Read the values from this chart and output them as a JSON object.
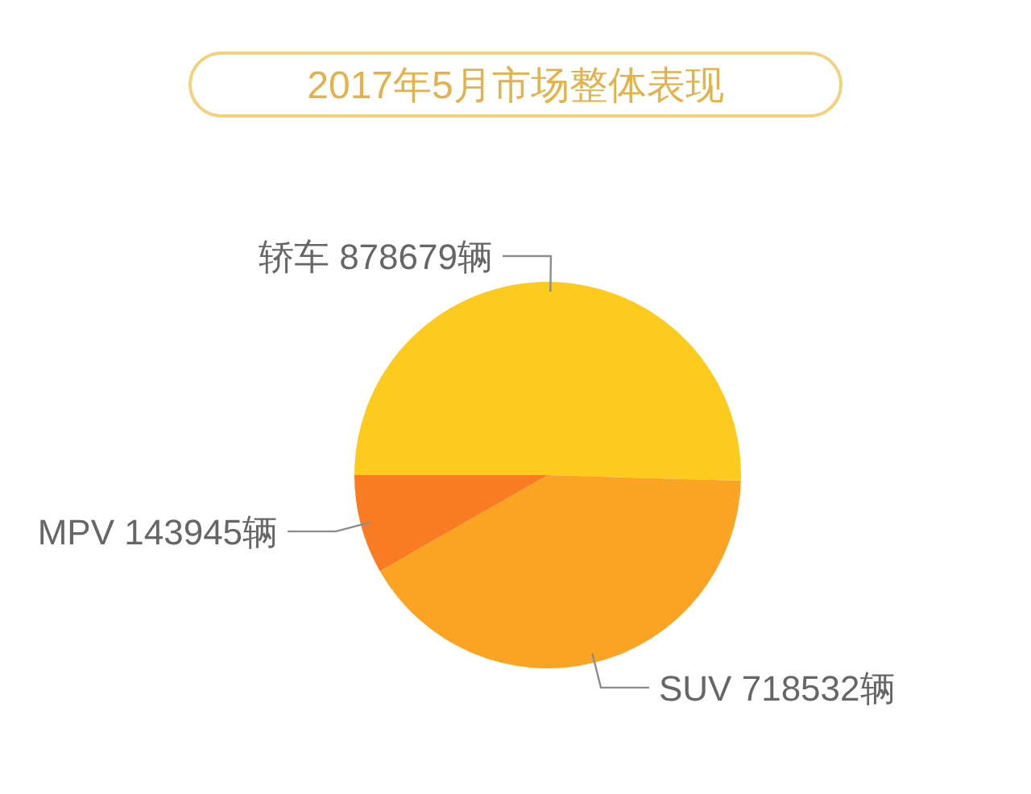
{
  "chart_data": {
    "type": "pie",
    "title": "2017年5月市场整体表现",
    "categories": [
      "轿车",
      "SUV",
      "MPV"
    ],
    "values": [
      878679,
      718532,
      143945
    ],
    "value_labels": [
      "878679辆",
      "718532辆",
      "143945辆"
    ],
    "colors": [
      "#fccb1e",
      "#fba424",
      "#f97b22"
    ]
  }
}
